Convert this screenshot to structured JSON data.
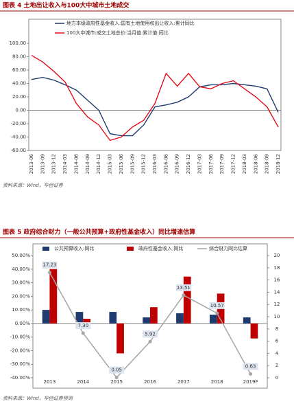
{
  "charts": [
    {
      "type": "line",
      "title": "图表 4  土地出让收入与100大中城市土地成交",
      "categories": [
        "2013-06",
        "2013-09",
        "2013-12",
        "2014-03",
        "2014-06",
        "2014-09",
        "2014-12",
        "2015-03",
        "2015-06",
        "2015-09",
        "2015-12",
        "2016-03",
        "2016-06",
        "2016-09",
        "2016-12",
        "2017-03",
        "2017-06",
        "2017-09",
        "2017-12",
        "2018-03",
        "2018-06",
        "2018-09",
        "2018-12"
      ],
      "series": [
        {
          "name": "地方本级政府性基金收入:国有土地使用权出让收入:累计同比",
          "color": "#1f3a6e",
          "values": [
            46,
            49,
            45,
            38,
            30,
            15,
            0,
            -35,
            -38,
            -38,
            -22,
            5,
            8,
            12,
            20,
            35,
            38,
            38,
            40,
            38,
            36,
            32,
            -3
          ]
        },
        {
          "name": "100大中城市:成交土地总价:当月值:累计值:同比",
          "color": "#e0101c",
          "values": [
            82,
            72,
            58,
            42,
            10,
            -10,
            -22,
            -45,
            -40,
            -25,
            -15,
            10,
            55,
            36,
            55,
            35,
            32,
            40,
            44,
            32,
            20,
            5,
            -25
          ]
        }
      ],
      "ylim": [
        -60,
        100
      ],
      "yticks": [
        {
          "value": -60,
          "label": "-60.00"
        },
        {
          "value": -40,
          "label": "-40.00"
        },
        {
          "value": -20,
          "label": "-20.00"
        },
        {
          "value": 0,
          "label": "0.00"
        },
        {
          "value": 20,
          "label": "20.00"
        },
        {
          "value": 40,
          "label": "40.00"
        },
        {
          "value": 60,
          "label": "60.00"
        },
        {
          "value": 80,
          "label": "80.00"
        },
        {
          "value": 100,
          "label": "100.00"
        }
      ],
      "source": "资料来源：Wind，华创证券"
    },
    {
      "type": "bar",
      "title": "图表 5  政府综合财力（一般公共预算+政府性基金收入）同比增速估算",
      "categories": [
        "2013",
        "2014",
        "2015",
        "2016",
        "2017",
        "2018",
        "2019F"
      ],
      "series": [
        {
          "name": "公共预算收入:同比",
          "color": "#1f3a6e",
          "values": [
            10,
            8.5,
            8.5,
            4.5,
            7.5,
            6.5,
            4.5
          ]
        },
        {
          "name": "政府性基金收入:同比",
          "color": "#c00000",
          "values": [
            40,
            3.5,
            -22,
            12,
            34.5,
            22,
            -11
          ]
        },
        {
          "name": "综合财力同比估算",
          "color": "#a6a6a6",
          "type": "line",
          "axis": "y2",
          "values": [
            17.23,
            7.3,
            0.05,
            5.92,
            13.51,
            10.57,
            0.63
          ],
          "value_labels": [
            "17.23",
            "7.30",
            "0.05",
            "5.92",
            "13.51",
            "10.57",
            "0.63"
          ]
        }
      ],
      "ylim": [
        -40,
        50
      ],
      "yticks": [
        {
          "value": -40,
          "label": "-40.00%"
        },
        {
          "value": -30,
          "label": "-30.00%"
        },
        {
          "value": -20,
          "label": "-20.00%"
        },
        {
          "value": -10,
          "label": "-10.00%"
        },
        {
          "value": 0,
          "label": "0.00%"
        },
        {
          "value": 10,
          "label": "10.00%"
        },
        {
          "value": 20,
          "label": "20.00%"
        },
        {
          "value": 30,
          "label": "30.00%"
        },
        {
          "value": 40,
          "label": "40.00%"
        },
        {
          "value": 50,
          "label": "50.00%"
        }
      ],
      "y2lim": [
        0,
        20
      ],
      "y2ticks": [
        0,
        2,
        4,
        6,
        8,
        10,
        12,
        14,
        16,
        18,
        20
      ],
      "source": "资料来源：Wind，华创证券预测"
    }
  ]
}
